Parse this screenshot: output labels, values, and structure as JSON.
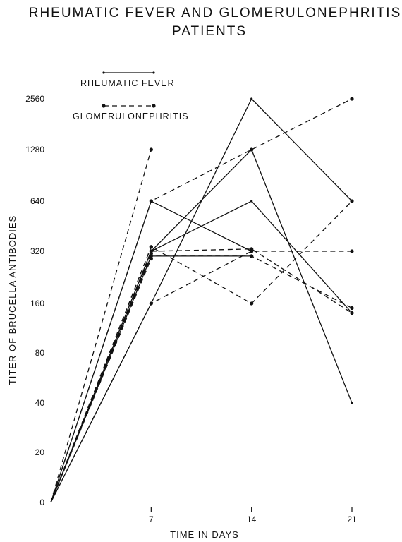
{
  "chart_data": {
    "type": "line",
    "title": [
      "RHEUMATIC FEVER AND GLOMERULONEPHRITIS",
      "PATIENTS"
    ],
    "xlabel": "TIME IN DAYS",
    "ylabel": "TITER OF BRUCELLA ANTIBODIES",
    "x_ticks": [
      7,
      14,
      21
    ],
    "x_origin_label": "0",
    "y_ticks": [
      20,
      40,
      80,
      160,
      320,
      640,
      1280,
      2560
    ],
    "y_scale": "log2",
    "legend": [
      {
        "label": "RHEUMATIC FEVER",
        "style": "solid"
      },
      {
        "label": "GLOMERULONEPHRITIS",
        "style": "dashed"
      }
    ],
    "legend_position": "top-left",
    "series": [
      {
        "style": "solid",
        "points": [
          [
            0,
            0
          ],
          [
            7,
            640
          ],
          [
            14,
            320
          ]
        ]
      },
      {
        "style": "solid",
        "points": [
          [
            0,
            0
          ],
          [
            7,
            320
          ],
          [
            14,
            640
          ],
          [
            21,
            140
          ]
        ]
      },
      {
        "style": "solid",
        "points": [
          [
            0,
            0
          ],
          [
            7,
            160
          ],
          [
            14,
            2560
          ],
          [
            21,
            640
          ]
        ]
      },
      {
        "style": "solid",
        "points": [
          [
            0,
            0
          ],
          [
            7,
            320
          ],
          [
            14,
            1280
          ],
          [
            21,
            40
          ]
        ]
      },
      {
        "style": "solid",
        "points": [
          [
            0,
            0
          ],
          [
            7,
            300
          ],
          [
            14,
            300
          ]
        ]
      },
      {
        "style": "dashed",
        "points": [
          [
            0,
            0
          ],
          [
            7,
            1280
          ]
        ]
      },
      {
        "style": "dashed",
        "points": [
          [
            0,
            0
          ],
          [
            7,
            640
          ],
          [
            14,
            1280
          ],
          [
            21,
            2560
          ]
        ]
      },
      {
        "style": "dashed",
        "points": [
          [
            0,
            0
          ],
          [
            7,
            340
          ],
          [
            14,
            160
          ],
          [
            21,
            640
          ]
        ]
      },
      {
        "style": "dashed",
        "points": [
          [
            0,
            0
          ],
          [
            7,
            160
          ],
          [
            14,
            320
          ],
          [
            21,
            320
          ]
        ]
      },
      {
        "style": "dashed",
        "points": [
          [
            0,
            0
          ],
          [
            7,
            300
          ],
          [
            14,
            300
          ],
          [
            21,
            150
          ]
        ]
      },
      {
        "style": "dashed",
        "points": [
          [
            0,
            0
          ],
          [
            7,
            320
          ],
          [
            14,
            330
          ],
          [
            21,
            140
          ]
        ]
      },
      {
        "style": "dashed",
        "points": [
          [
            0,
            0
          ],
          [
            7,
            340
          ]
        ]
      },
      {
        "style": "dashed",
        "points": [
          [
            0,
            0
          ],
          [
            7,
            310
          ]
        ]
      },
      {
        "style": "dashed",
        "points": [
          [
            0,
            0
          ],
          [
            7,
            290
          ]
        ]
      }
    ]
  }
}
